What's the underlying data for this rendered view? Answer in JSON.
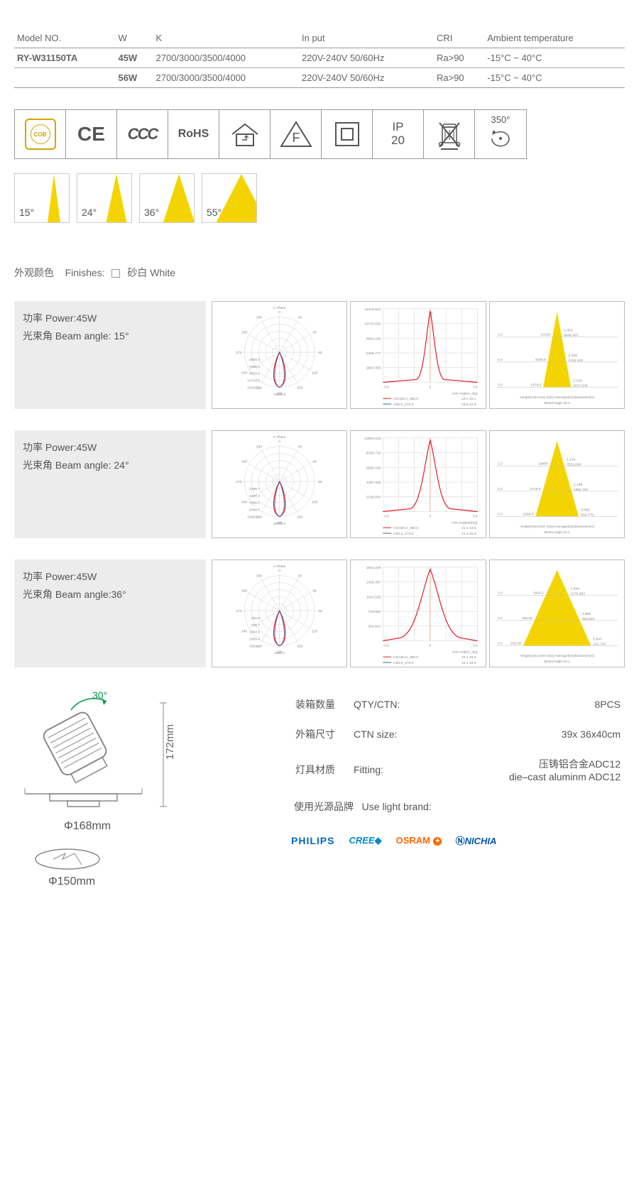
{
  "spec_headers": [
    "Model NO.",
    "W",
    "K",
    "In put",
    "CRI",
    "Ambient temperature"
  ],
  "spec_rows": [
    {
      "model": "RY-W31150TA",
      "w": "45W",
      "k": "2700/3000/3500/4000",
      "input": "220V-240V 50/60Hz",
      "cri": "Ra>90",
      "temp": "-15°C ~ 40°C"
    },
    {
      "model": "",
      "w": "56W",
      "k": "2700/3000/3500/4000",
      "input": "220V-240V 50/60Hz",
      "cri": "Ra>90",
      "temp": "-15°C ~ 40°C"
    }
  ],
  "cert_icons": {
    "cob": "COB",
    "ce": "CE",
    "ccc": "CCC",
    "rohs": "RoHS",
    "ip_top": "IP",
    "ip_bot": "20",
    "rotation": "350°"
  },
  "beam_angles": [
    {
      "label": "15°",
      "half": 7.5
    },
    {
      "label": "24°",
      "half": 12
    },
    {
      "label": "36°",
      "half": 18
    },
    {
      "label": "55°",
      "half": 27.5
    }
  ],
  "beam_fill": "#f4d400",
  "finishes": {
    "cn": "外观颜色",
    "en": "Finishes:",
    "val": "砂白 White"
  },
  "photo_specs": [
    {
      "power_cn": "功率 Power:45W",
      "angle_cn": "光束角 Beam angle: 15°",
      "polar": {
        "ticks": [
          "2683.4",
          "5366.8",
          "8050.2",
          "10733.6",
          "13416.9"
        ],
        "ang": [
          "0",
          "30",
          "60",
          "90",
          "120",
          "150",
          "180",
          "210",
          "240",
          "270",
          "300",
          "330"
        ],
        "title": "C Plane"
      },
      "intensity": {
        "y": [
          "13416.943",
          "10733.555",
          "8050.166",
          "5366.777",
          "2683.389"
        ],
        "peak_width": 9,
        "legend1": "C0/180.0_360.0",
        "legend2": "C90.0_270.0",
        "v1": "18.2  42.1",
        "v2": "18.5  42.9",
        "xlab": "Axis Angles_deg"
      },
      "cone": {
        "rows": [
          [
            "1.0",
            "13316",
            "1.053",
            "9648.407"
          ],
          [
            "2.0",
            "3328.9",
            "2.106",
            "2412.102"
          ],
          [
            "3.0",
            "1479.5",
            "3.159",
            "1072.045"
          ]
        ],
        "footer": "Height(m)Center E(lx)   AverageE(lx)Diameter(m)",
        "angle": "BeamAngle:18.2",
        "half": 9
      }
    },
    {
      "power_cn": "功率 Power:45W",
      "angle_cn": "光束角 Beam angle: 24°",
      "polar": {
        "ticks": [
          "2198.7",
          "4397.4",
          "6596.0",
          "8794.7",
          "10993.4"
        ],
        "ang": [
          "0",
          "30",
          "60",
          "90",
          "120",
          "150",
          "180",
          "210",
          "240",
          "270",
          "300",
          "330"
        ],
        "title": "C Plane"
      },
      "intensity": {
        "y": [
          "10993.415",
          "8794.732",
          "6596.049",
          "4397.366",
          "2198.683"
        ],
        "peak_width": 13,
        "legend1": "C0/180.0_360.0",
        "legend2": "C90.0_270.0",
        "v1": "21.1  44.6",
        "v2": "21.3  45.9",
        "xlab": "Axis Angles(deg)"
      },
      "cone": {
        "rows": [
          [
            "1.0",
            "10880",
            "1.219",
            "7531.008"
          ],
          [
            "2.0",
            "2719.9",
            "2.439",
            "1882.752"
          ],
          [
            "3.0",
            "1208.8",
            "3.658",
            "836.779"
          ]
        ],
        "footer": "Height(m)Center E(lx)   AverageE(lx)Diameter(m)",
        "angle": "BeamAngle:21.1",
        "half": 14
      }
    },
    {
      "power_cn": "功率 Power:45W",
      "angle_cn": "光束角 Beam angle:36°",
      "polar": {
        "ticks": [
          "364.8",
          "729.7",
          "1094.5",
          "1459.4",
          "1824.2"
        ],
        "ang": [
          "0",
          "30",
          "60",
          "90",
          "120",
          "150",
          "180",
          "210",
          "240",
          "270",
          "300",
          "330"
        ],
        "title": "C Plane"
      },
      "intensity": {
        "y": [
          "1824.209",
          "1459.367",
          "1094.525",
          "729.684",
          "364.842"
        ],
        "peak_width": 20,
        "legend1": "C0/180.0_360.0",
        "legend2": "C90.0_270.0",
        "v1": "33.1  49.6",
        "v2": "33.1  49.6",
        "xlab": "Axis Angles_deg"
      },
      "cone": {
        "rows": [
          [
            "1.0",
            "1824.2",
            "1.949",
            "1275.687"
          ],
          [
            "2.0",
            "456.05",
            "3.898",
            "318.922"
          ],
          [
            "3.0",
            "202.69",
            "5.847",
            "141.743"
          ]
        ],
        "footer": "Height(m)Center E(lx)   AverageE(lx)Diameter(m)",
        "angle": "BeamAngle:33.1",
        "half": 22
      }
    }
  ],
  "dimensions": {
    "tilt": "30°",
    "height": "172mm",
    "dia1": "Φ168mm",
    "cutout": "Φ150mm"
  },
  "info": [
    {
      "cn": "装箱数量",
      "en": "QTY/CTN:",
      "val": "8PCS"
    },
    {
      "cn": "外箱尺寸",
      "en": "CTN size:",
      "val": "39x 36x40cm"
    },
    {
      "cn": "灯具材质",
      "en": "Fitting:",
      "val": "压铸铝合金ADC12\ndie–cast aluminm ADC12"
    }
  ],
  "brand_label": {
    "cn": "使用光源品牌",
    "en": "Use light brand:"
  },
  "brands": {
    "philips": "PHILIPS",
    "cree": "CREE",
    "osram": "OSRAM",
    "nichia": "NICHIA"
  },
  "colors": {
    "yellow": "#f4d400",
    "red": "#e6192a",
    "blue": "#2e5fa3",
    "grid": "#cfcfcf"
  }
}
